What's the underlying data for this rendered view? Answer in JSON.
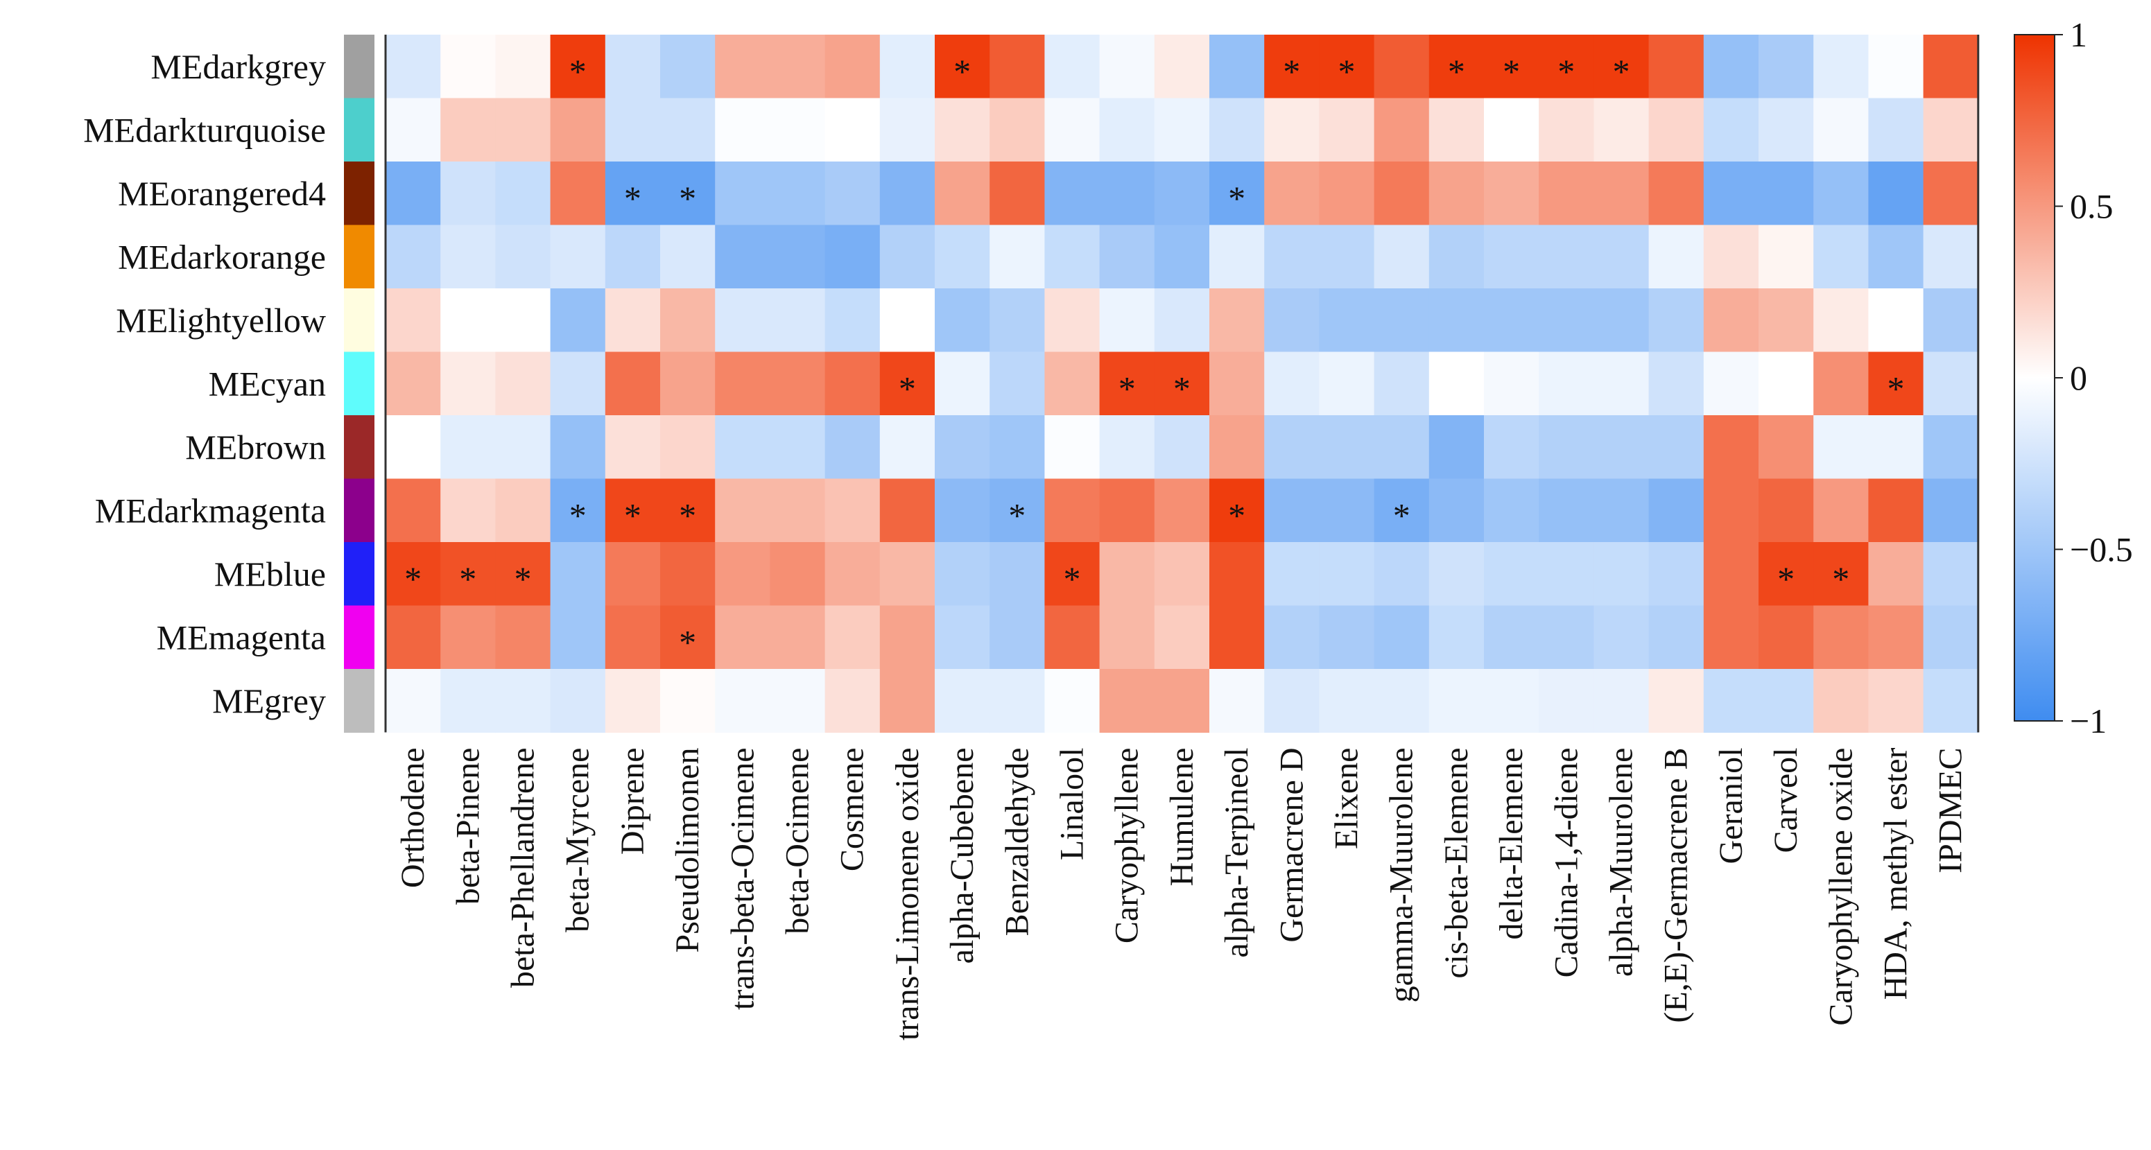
{
  "chart_data": {
    "type": "heatmap",
    "title": "",
    "xlabel": "",
    "ylabel": "",
    "rows": [
      {
        "name": "MEdarkgrey",
        "color": "#a0a0a0"
      },
      {
        "name": "MEdarkturquoise",
        "color": "#4dcfcc"
      },
      {
        "name": "MEorangered4",
        "color": "#7d2200"
      },
      {
        "name": "MEdarkorange",
        "color": "#f08a00"
      },
      {
        "name": "MElightyellow",
        "color": "#fffde0"
      },
      {
        "name": "MEcyan",
        "color": "#5ffcfc"
      },
      {
        "name": "MEbrown",
        "color": "#9b2828"
      },
      {
        "name": "MEdarkmagenta",
        "color": "#8c008c"
      },
      {
        "name": "MEblue",
        "color": "#2020f8"
      },
      {
        "name": "MEmagenta",
        "color": "#f000f0"
      },
      {
        "name": "MEgrey",
        "color": "#bdbdbd"
      }
    ],
    "columns": [
      "Orthodene",
      "beta-Pinene",
      "beta-Phellandrene",
      "beta-Myrcene",
      "Diprene",
      "Pseudolimonen",
      "trans-beta-Ocimene",
      "beta-Ocimene",
      "Cosmene",
      "trans-Limonene oxide",
      "alpha-Cubebene",
      "Benzaldehyde",
      "Linalool",
      "Caryophyllene",
      "Humulene",
      "alpha-Terpineol",
      "Germacrene D",
      "Elixene",
      "gamma-Muurolene",
      "cis-beta-Elemene",
      "delta-Elemene",
      "Cadina-1,4-diene",
      "alpha-Muurolene",
      "(E,E)-Germacrene B",
      "Geraniol",
      "Carveol",
      "Caryophyllene oxide",
      "HDA, methyl ester",
      "IPDMEC"
    ],
    "values": [
      [
        -0.2,
        0.02,
        0.05,
        0.95,
        -0.25,
        -0.4,
        0.4,
        0.4,
        0.45,
        -0.15,
        0.95,
        0.8,
        -0.15,
        -0.05,
        0.1,
        -0.55,
        0.95,
        0.95,
        0.8,
        0.95,
        0.95,
        0.95,
        0.95,
        0.8,
        -0.55,
        -0.45,
        -0.15,
        -0.02,
        0.8
      ],
      [
        -0.05,
        0.25,
        0.25,
        0.45,
        -0.25,
        -0.25,
        -0.02,
        -0.02,
        0.0,
        -0.12,
        0.15,
        0.25,
        -0.05,
        -0.15,
        -0.1,
        -0.25,
        0.1,
        0.15,
        0.5,
        0.15,
        0.0,
        0.15,
        0.1,
        0.2,
        -0.3,
        -0.2,
        -0.05,
        -0.25,
        0.2
      ],
      [
        -0.7,
        -0.25,
        -0.3,
        0.65,
        -0.8,
        -0.8,
        -0.5,
        -0.5,
        -0.45,
        -0.65,
        0.45,
        0.75,
        -0.65,
        -0.65,
        -0.6,
        -0.75,
        0.45,
        0.5,
        0.65,
        0.45,
        0.4,
        0.5,
        0.5,
        0.65,
        -0.7,
        -0.7,
        -0.55,
        -0.8,
        0.7
      ],
      [
        -0.35,
        -0.2,
        -0.25,
        -0.2,
        -0.35,
        -0.2,
        -0.65,
        -0.65,
        -0.7,
        -0.4,
        -0.3,
        -0.1,
        -0.3,
        -0.45,
        -0.55,
        -0.15,
        -0.35,
        -0.35,
        -0.2,
        -0.4,
        -0.35,
        -0.35,
        -0.35,
        -0.1,
        0.15,
        0.05,
        -0.3,
        -0.5,
        -0.2
      ],
      [
        0.2,
        0.0,
        0.0,
        -0.55,
        0.15,
        0.35,
        -0.2,
        -0.2,
        -0.3,
        0.0,
        -0.5,
        -0.4,
        0.15,
        -0.1,
        -0.2,
        0.35,
        -0.45,
        -0.5,
        -0.5,
        -0.5,
        -0.5,
        -0.5,
        -0.5,
        -0.4,
        0.4,
        0.35,
        0.1,
        0.0,
        -0.45
      ],
      [
        0.35,
        0.1,
        0.15,
        -0.25,
        0.7,
        0.45,
        0.6,
        0.6,
        0.7,
        0.9,
        -0.1,
        -0.35,
        0.35,
        0.9,
        0.9,
        0.4,
        -0.15,
        -0.1,
        -0.25,
        0.0,
        -0.05,
        -0.1,
        -0.1,
        -0.25,
        -0.05,
        0.0,
        0.55,
        0.9,
        -0.25
      ],
      [
        0.0,
        -0.15,
        -0.15,
        -0.55,
        0.15,
        0.2,
        -0.3,
        -0.3,
        -0.45,
        -0.1,
        -0.45,
        -0.5,
        -0.02,
        -0.15,
        -0.25,
        0.45,
        -0.4,
        -0.4,
        -0.4,
        -0.65,
        -0.35,
        -0.4,
        -0.4,
        -0.4,
        0.7,
        0.55,
        -0.1,
        -0.1,
        -0.5
      ],
      [
        0.7,
        0.2,
        0.25,
        -0.7,
        0.9,
        0.9,
        0.35,
        0.35,
        0.3,
        0.75,
        -0.6,
        -0.65,
        0.65,
        0.7,
        0.55,
        0.95,
        -0.6,
        -0.6,
        -0.7,
        -0.6,
        -0.5,
        -0.55,
        -0.55,
        -0.65,
        0.7,
        0.75,
        0.5,
        0.8,
        -0.65
      ],
      [
        0.9,
        0.85,
        0.85,
        -0.5,
        0.65,
        0.75,
        0.5,
        0.55,
        0.4,
        0.35,
        -0.4,
        -0.45,
        0.9,
        0.35,
        0.3,
        0.85,
        -0.3,
        -0.3,
        -0.35,
        -0.25,
        -0.3,
        -0.3,
        -0.3,
        -0.35,
        0.7,
        0.9,
        0.9,
        0.4,
        -0.35
      ],
      [
        0.75,
        0.55,
        0.6,
        -0.5,
        0.7,
        0.8,
        0.4,
        0.4,
        0.25,
        0.45,
        -0.35,
        -0.45,
        0.75,
        0.35,
        0.25,
        0.85,
        -0.4,
        -0.45,
        -0.5,
        -0.3,
        -0.4,
        -0.4,
        -0.35,
        -0.4,
        0.7,
        0.75,
        0.6,
        0.55,
        -0.4
      ]
    ],
    "values_last": [
      -0.05,
      -0.15,
      -0.15,
      -0.2,
      0.1,
      0.02,
      -0.05,
      -0.05,
      0.15,
      0.45,
      -0.15,
      -0.15,
      -0.02,
      0.45,
      0.45,
      -0.05,
      -0.2,
      -0.15,
      -0.15,
      -0.1,
      -0.1,
      -0.12,
      -0.12,
      0.1,
      -0.3,
      -0.3,
      0.25,
      0.2,
      -0.3
    ],
    "significant": [
      [
        0,
        3
      ],
      [
        0,
        10
      ],
      [
        0,
        16
      ],
      [
        0,
        17
      ],
      [
        0,
        19
      ],
      [
        0,
        20
      ],
      [
        0,
        21
      ],
      [
        0,
        22
      ],
      [
        2,
        4
      ],
      [
        2,
        5
      ],
      [
        2,
        15
      ],
      [
        5,
        9
      ],
      [
        5,
        13
      ],
      [
        5,
        14
      ],
      [
        5,
        27
      ],
      [
        7,
        3
      ],
      [
        7,
        4
      ],
      [
        7,
        5
      ],
      [
        7,
        11
      ],
      [
        7,
        15
      ],
      [
        7,
        18
      ],
      [
        8,
        0
      ],
      [
        8,
        1
      ],
      [
        8,
        2
      ],
      [
        8,
        12
      ],
      [
        8,
        25
      ],
      [
        8,
        26
      ],
      [
        9,
        5
      ]
    ],
    "significance_marker": "*",
    "colorbar": {
      "range": [
        -1,
        1
      ],
      "ticks": [
        1,
        0.5,
        0,
        -0.5,
        -1
      ],
      "tick_labels": [
        "1",
        "0.5",
        "0",
        "−0.5",
        "−1"
      ],
      "colors": {
        "low": "#3f8cf0",
        "mid": "#ffffff",
        "high": "#ee3300"
      }
    }
  }
}
